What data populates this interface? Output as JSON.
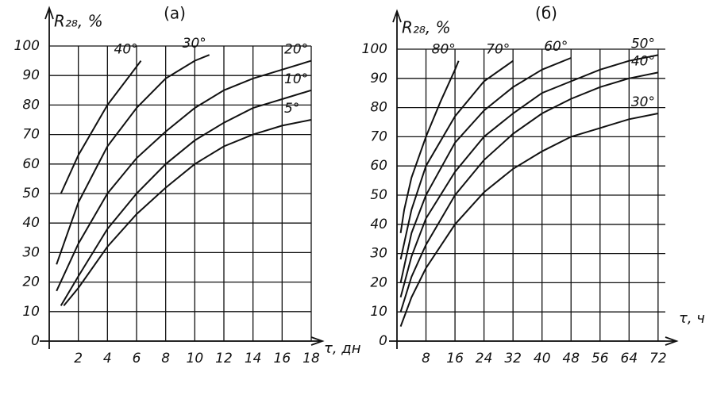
{
  "chart_data": [
    {
      "type": "line",
      "title": "(a)",
      "ylabel": "R₂₈, %",
      "xlabel": "τ, дн",
      "xlim": [
        0,
        18
      ],
      "ylim": [
        0,
        100
      ],
      "xticks": [
        2,
        4,
        6,
        8,
        10,
        12,
        14,
        16,
        18
      ],
      "yticks": [
        0,
        10,
        20,
        30,
        40,
        50,
        60,
        70,
        80,
        90,
        100
      ],
      "grid": true,
      "series": [
        {
          "name": "40°",
          "color": "#111",
          "x": [
            0.8,
            2,
            4,
            6,
            6.3
          ],
          "values": [
            50,
            63,
            80,
            93,
            95
          ]
        },
        {
          "name": "30°",
          "color": "#111",
          "x": [
            0.5,
            2,
            4,
            6,
            8,
            10,
            11
          ],
          "values": [
            26,
            47,
            66,
            79,
            89,
            95,
            97
          ]
        },
        {
          "name": "20°",
          "color": "#111",
          "x": [
            0.5,
            2,
            4,
            6,
            8,
            10,
            12,
            14,
            16,
            18
          ],
          "values": [
            17,
            33,
            50,
            62,
            71,
            79,
            85,
            89,
            92,
            95
          ]
        },
        {
          "name": "10°",
          "color": "#111",
          "x": [
            0.8,
            2,
            4,
            6,
            8,
            10,
            12,
            14,
            16,
            18
          ],
          "values": [
            12,
            22,
            38,
            50,
            60,
            68,
            74,
            79,
            82,
            85
          ]
        },
        {
          "name": "5°",
          "color": "#111",
          "x": [
            1,
            2,
            4,
            6,
            8,
            10,
            12,
            14,
            16,
            18
          ],
          "values": [
            12,
            18,
            32,
            43,
            52,
            60,
            66,
            70,
            73,
            75
          ]
        }
      ]
    },
    {
      "type": "line",
      "title": "(б)",
      "ylabel": "R₂₈, %",
      "xlabel": "τ, ч",
      "xlim": [
        0,
        74
      ],
      "ylim": [
        0,
        100
      ],
      "xticks": [
        8,
        16,
        24,
        32,
        40,
        48,
        56,
        64,
        72
      ],
      "yticks": [
        0,
        10,
        20,
        30,
        40,
        50,
        60,
        70,
        80,
        90,
        100
      ],
      "grid": true,
      "series": [
        {
          "name": "80°",
          "color": "#111",
          "x": [
            1,
            2,
            4,
            8,
            12,
            16,
            17
          ],
          "values": [
            37,
            45,
            56,
            70,
            82,
            93,
            96
          ]
        },
        {
          "name": "70°",
          "color": "#111",
          "x": [
            1,
            4,
            8,
            16,
            24,
            32
          ],
          "values": [
            28,
            45,
            60,
            77,
            89,
            96
          ]
        },
        {
          "name": "60°",
          "color": "#111",
          "x": [
            1,
            4,
            8,
            16,
            24,
            32,
            40,
            48
          ],
          "values": [
            20,
            37,
            50,
            68,
            79,
            87,
            93,
            97
          ]
        },
        {
          "name": "50°",
          "color": "#111",
          "x": [
            1,
            4,
            8,
            16,
            24,
            32,
            40,
            48,
            56,
            64,
            72
          ],
          "values": [
            15,
            29,
            42,
            58,
            70,
            78,
            85,
            89,
            93,
            96,
            98
          ]
        },
        {
          "name": "40°",
          "color": "#111",
          "x": [
            1,
            4,
            8,
            16,
            24,
            32,
            40,
            48,
            56,
            64,
            72
          ],
          "values": [
            10,
            22,
            33,
            50,
            62,
            71,
            78,
            83,
            87,
            90,
            92
          ]
        },
        {
          "name": "30°",
          "color": "#111",
          "x": [
            1,
            4,
            8,
            16,
            24,
            32,
            40,
            48,
            56,
            64,
            72
          ],
          "values": [
            5,
            15,
            25,
            40,
            51,
            59,
            65,
            70,
            73,
            76,
            78
          ]
        }
      ]
    }
  ]
}
